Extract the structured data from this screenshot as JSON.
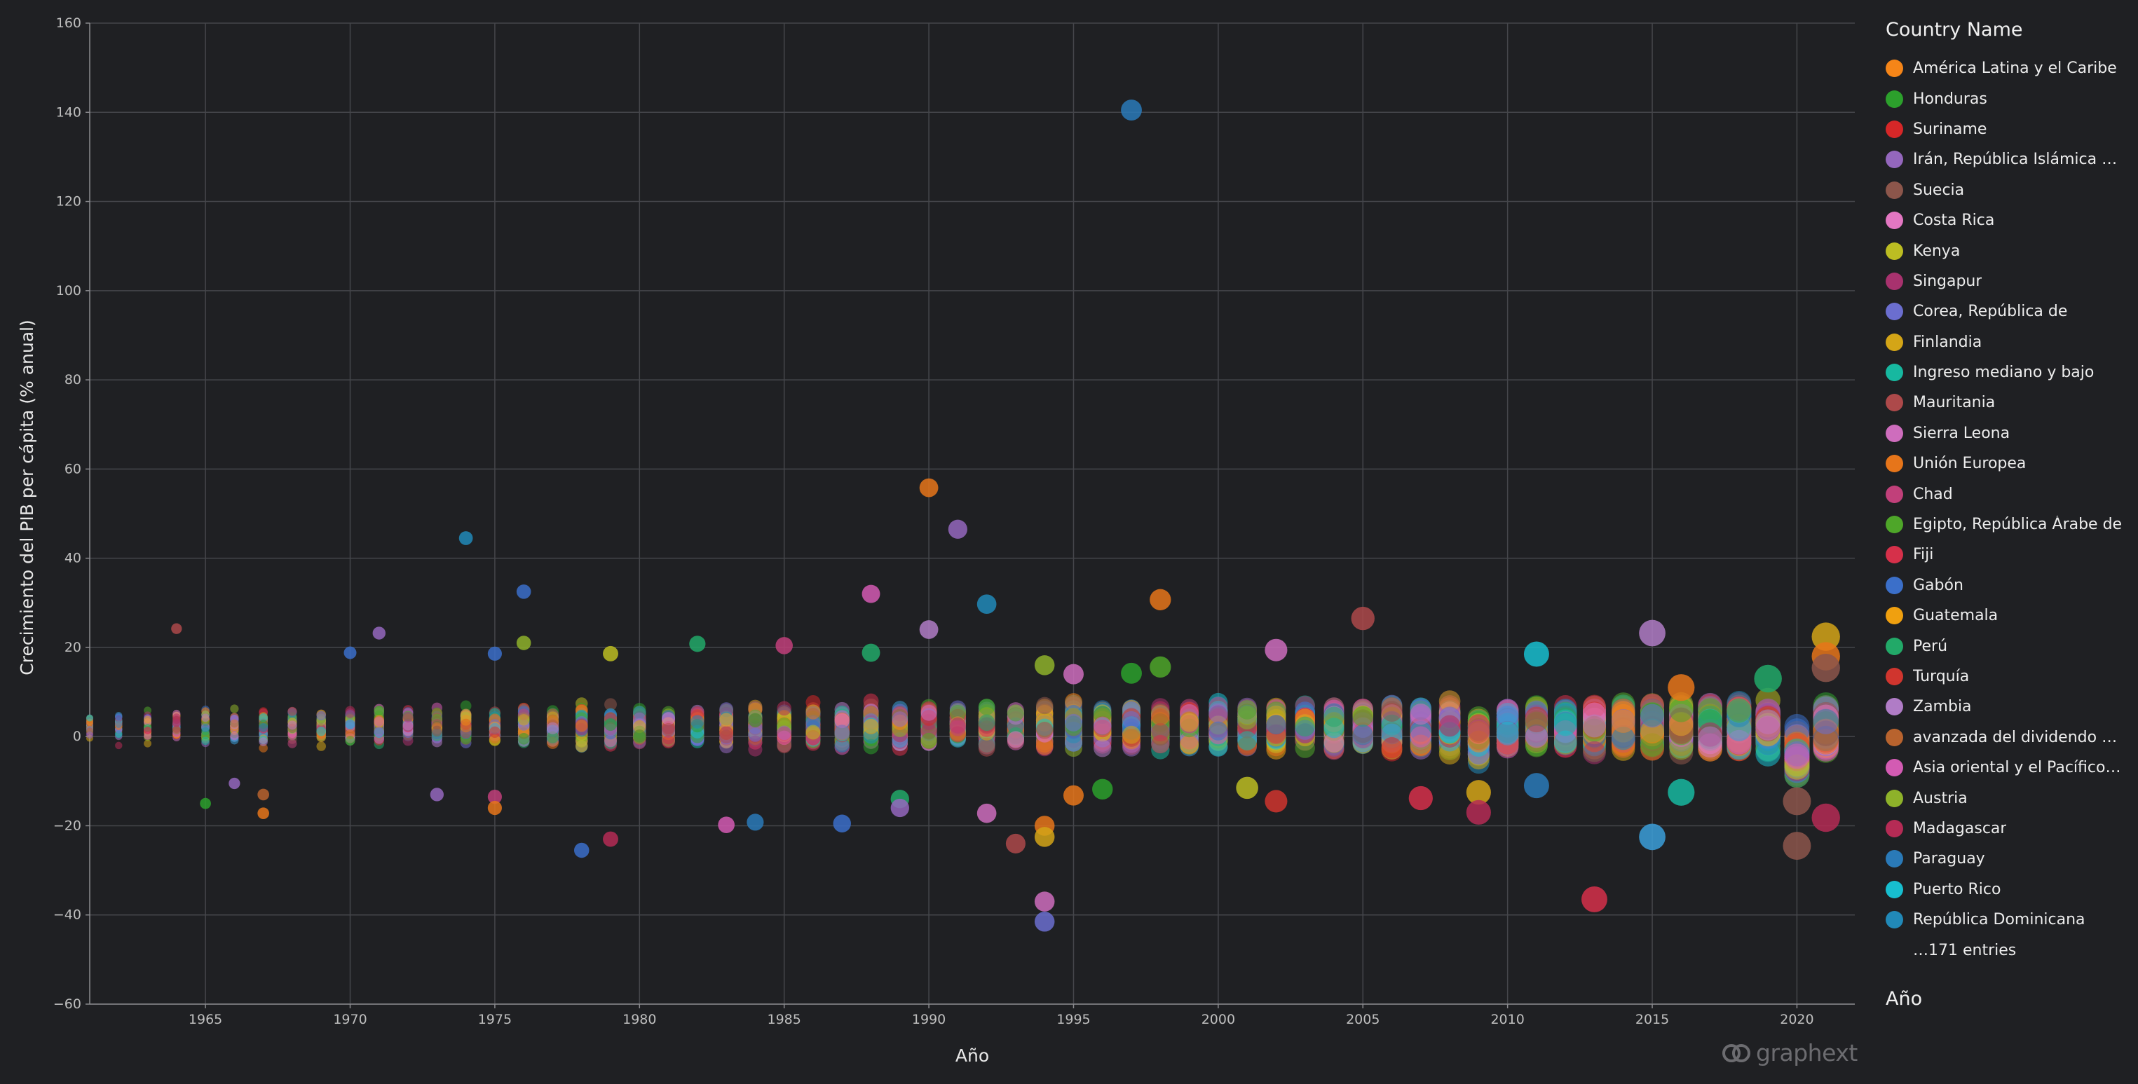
{
  "chart_data": {
    "type": "scatter",
    "title": "",
    "xlabel": "Año",
    "ylabel": "Crecimiento del PIB per cápita (% anual)",
    "xlim": [
      1961,
      2022
    ],
    "ylim": [
      -60,
      160
    ],
    "x_ticks": [
      1965,
      1970,
      1975,
      1980,
      1985,
      1990,
      1995,
      2000,
      2005,
      2010,
      2015,
      2020
    ],
    "y_ticks": [
      -60,
      -40,
      -20,
      0,
      20,
      40,
      60,
      80,
      100,
      120,
      140,
      160
    ],
    "grid": true,
    "legend_position": "right",
    "legend_title": "Country Name",
    "size_legend_title": "Año",
    "legend_more": "…171 entries",
    "series": [
      {
        "name": "América Latina y el Caribe",
        "color": "#f58518"
      },
      {
        "name": "Honduras",
        "color": "#2ca02c"
      },
      {
        "name": "Suriname",
        "color": "#d62728"
      },
      {
        "name": "Irán, República Islámica del",
        "color": "#9467bd"
      },
      {
        "name": "Suecia",
        "color": "#8c564b"
      },
      {
        "name": "Costa Rica",
        "color": "#e377c2"
      },
      {
        "name": "Kenya",
        "color": "#bcbd22"
      },
      {
        "name": "Singapur",
        "color": "#a8326e"
      },
      {
        "name": "Corea, República de",
        "color": "#6b6ecf"
      },
      {
        "name": "Finlandia",
        "color": "#d4a517"
      },
      {
        "name": "Ingreso mediano y bajo",
        "color": "#17b8a0"
      },
      {
        "name": "Mauritania",
        "color": "#ad494a"
      },
      {
        "name": "Sierra Leona",
        "color": "#ce6dbd"
      },
      {
        "name": "Unión Europea",
        "color": "#e6751a"
      },
      {
        "name": "Chad",
        "color": "#c1407a"
      },
      {
        "name": "Egipto, República Árabe de",
        "color": "#4ea629"
      },
      {
        "name": "Fiji",
        "color": "#d6304a"
      },
      {
        "name": "Gabón",
        "color": "#3b6fc9"
      },
      {
        "name": "Guatemala",
        "color": "#f0a00f"
      },
      {
        "name": "Perú",
        "color": "#22a968"
      },
      {
        "name": "Turquía",
        "color": "#d0352e"
      },
      {
        "name": "Zambia",
        "color": "#b07cc6"
      },
      {
        "name": "avanzada del dividendo demográfico",
        "color": "#b8632e"
      },
      {
        "name": "Asia oriental y el Pacífico (excluido altos ingresos)",
        "color": "#d35bb3"
      },
      {
        "name": "Austria",
        "color": "#8eb22a"
      },
      {
        "name": "Madagascar",
        "color": "#b52b55"
      },
      {
        "name": "Paraguay",
        "color": "#2a7ab8"
      },
      {
        "name": "Puerto Rico",
        "color": "#17becf"
      },
      {
        "name": "República Dominicana",
        "color": "#2189b8"
      }
    ],
    "highlighted_points": [
      {
        "x": 1997,
        "y": 140.5,
        "color": "#2a7ab8"
      },
      {
        "x": 1990,
        "y": 55.8,
        "color": "#e6751a"
      },
      {
        "x": 1991,
        "y": 46.5,
        "color": "#9467bd"
      },
      {
        "x": 1974,
        "y": 44.5,
        "color": "#2189b8"
      },
      {
        "x": 1976,
        "y": 32.5,
        "color": "#3b6fc9"
      },
      {
        "x": 1988,
        "y": 32.0,
        "color": "#d35bb3"
      },
      {
        "x": 1998,
        "y": 30.7,
        "color": "#e6751a"
      },
      {
        "x": 1992,
        "y": 29.7,
        "color": "#2189b8"
      },
      {
        "x": 2005,
        "y": 26.5,
        "color": "#ad494a"
      },
      {
        "x": 1964,
        "y": 24.2,
        "color": "#ad494a"
      },
      {
        "x": 1990,
        "y": 24.0,
        "color": "#b07cc6"
      },
      {
        "x": 2015,
        "y": 23.2,
        "color": "#b07cc6"
      },
      {
        "x": 1971,
        "y": 23.2,
        "color": "#9467bd"
      },
      {
        "x": 2021,
        "y": 22.4,
        "color": "#d4a517"
      },
      {
        "x": 1976,
        "y": 21.0,
        "color": "#8eb22a"
      },
      {
        "x": 1982,
        "y": 20.8,
        "color": "#22a968"
      },
      {
        "x": 1985,
        "y": 20.4,
        "color": "#c1407a"
      },
      {
        "x": 2002,
        "y": 19.4,
        "color": "#ce6dbd"
      },
      {
        "x": 1970,
        "y": 18.8,
        "color": "#3b6fc9"
      },
      {
        "x": 1975,
        "y": 18.6,
        "color": "#3b6fc9"
      },
      {
        "x": 1979,
        "y": 18.6,
        "color": "#bcbd22"
      },
      {
        "x": 2011,
        "y": 18.5,
        "color": "#17becf"
      },
      {
        "x": 1988,
        "y": 18.8,
        "color": "#22a968"
      },
      {
        "x": 2021,
        "y": 18.0,
        "color": "#e6751a"
      },
      {
        "x": 1998,
        "y": 15.6,
        "color": "#4ea629"
      },
      {
        "x": 2021,
        "y": 15.4,
        "color": "#8c564b"
      },
      {
        "x": 1994,
        "y": 16.0,
        "color": "#8eb22a"
      },
      {
        "x": 1997,
        "y": 14.2,
        "color": "#2ca02c"
      },
      {
        "x": 1995,
        "y": 14.0,
        "color": "#ce6dbd"
      },
      {
        "x": 2019,
        "y": 13.0,
        "color": "#22a968"
      },
      {
        "x": 2016,
        "y": 11.0,
        "color": "#e6751a"
      },
      {
        "x": 2001,
        "y": -11.5,
        "color": "#bcbd22"
      },
      {
        "x": 1996,
        "y": -11.8,
        "color": "#2ca02c"
      },
      {
        "x": 2011,
        "y": -11.0,
        "color": "#2a7ab8"
      },
      {
        "x": 2016,
        "y": -12.5,
        "color": "#17b8a0"
      },
      {
        "x": 2009,
        "y": -12.5,
        "color": "#d4a517"
      },
      {
        "x": 1995,
        "y": -13.2,
        "color": "#e6751a"
      },
      {
        "x": 1975,
        "y": -13.5,
        "color": "#c1407a"
      },
      {
        "x": 1973,
        "y": -13.0,
        "color": "#9467bd"
      },
      {
        "x": 1967,
        "y": -13.0,
        "color": "#b8632e"
      },
      {
        "x": 2007,
        "y": -13.8,
        "color": "#d6304a"
      },
      {
        "x": 2002,
        "y": -14.5,
        "color": "#d0352e"
      },
      {
        "x": 1989,
        "y": -14.0,
        "color": "#22a968"
      },
      {
        "x": 2020,
        "y": -14.5,
        "color": "#8c564b"
      },
      {
        "x": 1989,
        "y": -16.0,
        "color": "#9467bd"
      },
      {
        "x": 1975,
        "y": -16.0,
        "color": "#e6751a"
      },
      {
        "x": 1967,
        "y": -17.2,
        "color": "#e6751a"
      },
      {
        "x": 2009,
        "y": -17.0,
        "color": "#b52b55"
      },
      {
        "x": 1992,
        "y": -17.2,
        "color": "#ce6dbd"
      },
      {
        "x": 2021,
        "y": -18.2,
        "color": "#b52b55"
      },
      {
        "x": 1984,
        "y": -19.2,
        "color": "#2a7ab8"
      },
      {
        "x": 1987,
        "y": -19.5,
        "color": "#3b6fc9"
      },
      {
        "x": 1983,
        "y": -19.8,
        "color": "#d35bb3"
      },
      {
        "x": 1994,
        "y": -20.0,
        "color": "#e6751a"
      },
      {
        "x": 1994,
        "y": -22.5,
        "color": "#d4a517"
      },
      {
        "x": 2015,
        "y": -22.5,
        "color": "#3b9fd9"
      },
      {
        "x": 1979,
        "y": -23.0,
        "color": "#b52b55"
      },
      {
        "x": 1993,
        "y": -24.0,
        "color": "#ad494a"
      },
      {
        "x": 2020,
        "y": -24.5,
        "color": "#8c564b"
      },
      {
        "x": 1978,
        "y": -25.5,
        "color": "#3b6fc9"
      },
      {
        "x": 2013,
        "y": -36.5,
        "color": "#d6304a"
      },
      {
        "x": 1994,
        "y": -37.0,
        "color": "#ce6dbd"
      },
      {
        "x": 1994,
        "y": -41.5,
        "color": "#6b6ecf"
      },
      {
        "x": 1966,
        "y": -10.5,
        "color": "#9467bd"
      },
      {
        "x": 1965,
        "y": -15.0,
        "color": "#2ca02c"
      }
    ]
  },
  "brand": {
    "text": "graphext"
  }
}
